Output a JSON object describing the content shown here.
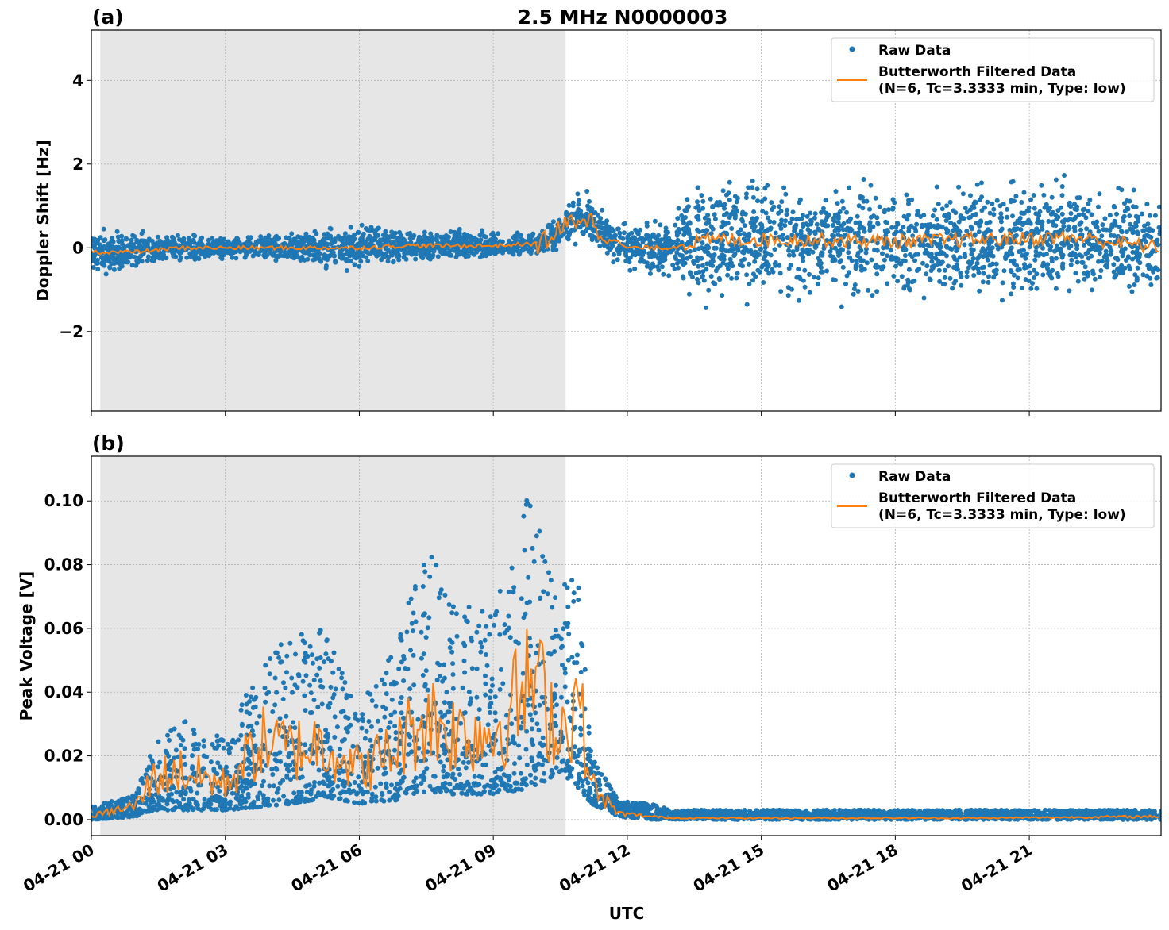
{
  "title": "2.5 MHz N0000003",
  "colors": {
    "raw": "#1f77b4",
    "filtered": "#ff7f0e",
    "shade": "#e6e6e6"
  },
  "chart_data": [
    {
      "type": "scatter",
      "panel_label": "(a)",
      "ylabel": "Doppler Shift [Hz]",
      "xlabel": "",
      "xlim_hours": [
        0,
        23.95
      ],
      "ylim": [
        -3.9,
        5.2
      ],
      "yticks": [
        -2,
        0,
        2,
        4
      ],
      "ytick_labels": [
        "−2",
        "0",
        "2",
        "4"
      ],
      "grid": true,
      "shaded_interval_hours": [
        0.2,
        10.62
      ],
      "legend": {
        "placement": "top-right",
        "entries": [
          "Raw Data",
          "Butterworth Filtered Data",
          "(N=6, Tc=3.3333 min, Type: low)"
        ]
      },
      "envelope": {
        "hours": [
          0,
          1,
          2,
          3,
          4,
          5,
          6,
          7,
          8,
          9,
          10,
          10.5,
          11,
          11.5,
          12,
          13,
          13.3,
          14,
          16,
          18,
          20,
          22,
          23.95
        ],
        "center": [
          -0.1,
          -0.1,
          0,
          0,
          0,
          0,
          0,
          0.05,
          0.05,
          0.05,
          0.1,
          0.4,
          0.8,
          0.3,
          0,
          0,
          0.1,
          0.2,
          0.2,
          0.15,
          0.2,
          0.25,
          0
        ],
        "spread": [
          0.5,
          0.45,
          0.3,
          0.25,
          0.3,
          0.45,
          0.55,
          0.35,
          0.35,
          0.35,
          0.25,
          0.45,
          0.6,
          0.5,
          0.5,
          0.6,
          1.2,
          1.4,
          1.3,
          1.3,
          1.3,
          1.3,
          1.2
        ]
      }
    },
    {
      "type": "scatter",
      "panel_label": "(b)",
      "ylabel": "Peak Voltage [V]",
      "xlabel": "UTC",
      "xlim_hours": [
        0,
        23.95
      ],
      "ylim": [
        -0.005,
        0.114
      ],
      "yticks": [
        0,
        0.02,
        0.04,
        0.06,
        0.08,
        0.1
      ],
      "ytick_labels": [
        "0.00",
        "0.02",
        "0.04",
        "0.06",
        "0.08",
        "0.10"
      ],
      "xtick_labels": [
        "04-21 00",
        "04-21 03",
        "04-21 06",
        "04-21 09",
        "04-21 12",
        "04-21 15",
        "04-21 18",
        "04-21 21"
      ],
      "xtick_hours": [
        0,
        3,
        6,
        9,
        12,
        15,
        18,
        21
      ],
      "grid": true,
      "shaded_interval_hours": [
        0.2,
        10.62
      ],
      "legend": {
        "placement": "top-right",
        "entries": [
          "Raw Data",
          "Butterworth Filtered Data",
          "(N=6, Tc=3.3333 min, Type: low)"
        ]
      },
      "envelope": {
        "hours": [
          0,
          1,
          1.4,
          2,
          3,
          3.8,
          4.5,
          5.3,
          6,
          6.8,
          7.5,
          8,
          9,
          9.9,
          10.5,
          10.9,
          11.2,
          11.8,
          12.5,
          13,
          16,
          20,
          23.95
        ],
        "lower": [
          0,
          0.001,
          0.003,
          0.003,
          0.003,
          0.004,
          0.005,
          0.007,
          0.005,
          0.006,
          0.009,
          0.008,
          0.008,
          0.01,
          0.015,
          0.01,
          0.005,
          0.001,
          0,
          0,
          0,
          0,
          0
        ],
        "upper": [
          0.004,
          0.008,
          0.024,
          0.032,
          0.025,
          0.05,
          0.058,
          0.06,
          0.035,
          0.055,
          0.09,
          0.07,
          0.065,
          0.108,
          0.075,
          0.077,
          0.02,
          0.006,
          0.005,
          0.003,
          0.003,
          0.003,
          0.003
        ],
        "filtered": [
          0.001,
          0.004,
          0.012,
          0.014,
          0.01,
          0.022,
          0.02,
          0.022,
          0.014,
          0.02,
          0.03,
          0.025,
          0.025,
          0.04,
          0.025,
          0.035,
          0.01,
          0.002,
          0.001,
          0.0005,
          0.0005,
          0.0005,
          0.001
        ]
      }
    }
  ]
}
